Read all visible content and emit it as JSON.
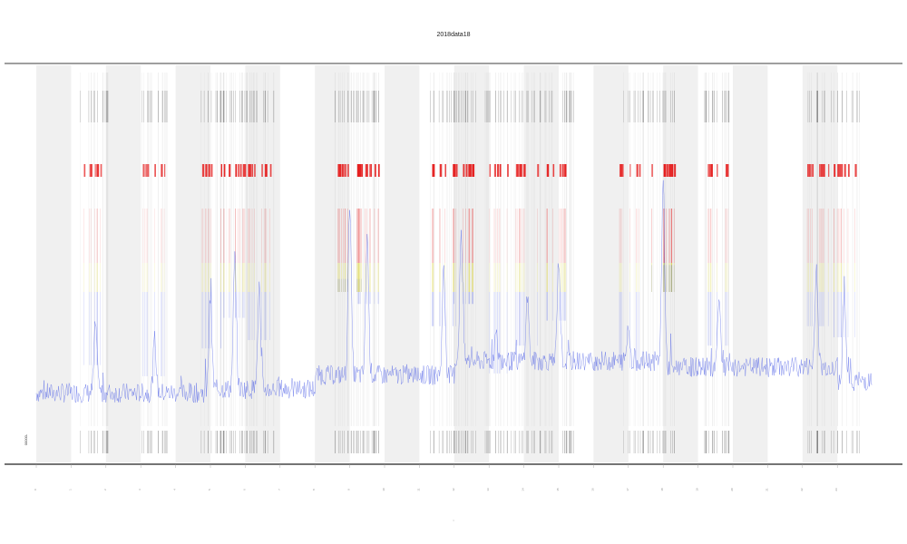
{
  "chart_data": {
    "type": "line",
    "title": "2018data18",
    "xlabel": "t",
    "ylabel": "",
    "legend": {
      "entries": [
        "00000-"
      ],
      "placement": "bottom-left"
    },
    "grid": false,
    "bands": {
      "alternating_shading": true,
      "count": 24,
      "start": 0,
      "end": 24
    },
    "x_tick_labels": [
      "0",
      "1",
      "2",
      "3",
      "4",
      "5",
      "6",
      "7",
      "8",
      "9",
      "10",
      "11",
      "12",
      "13",
      "14",
      "15",
      "16",
      "17",
      "18",
      "19",
      "20",
      "21",
      "22",
      "23"
    ],
    "ylim": [
      0,
      100
    ],
    "baseline_segments": [
      {
        "x_start": 0.0,
        "x_end": 5.0,
        "level": 17.5
      },
      {
        "x_start": 5.0,
        "x_end": 8.0,
        "level": 18.5
      },
      {
        "x_start": 8.0,
        "x_end": 12.0,
        "level": 22.0
      },
      {
        "x_start": 12.0,
        "x_end": 18.0,
        "level": 25.5
      },
      {
        "x_start": 18.0,
        "x_end": 23.0,
        "level": 24.0
      },
      {
        "x_start": 23.0,
        "x_end": 24.0,
        "level": 20.5
      }
    ],
    "peaks": [
      {
        "x": 1.7,
        "y": 35
      },
      {
        "x": 3.4,
        "y": 31
      },
      {
        "x": 5.0,
        "y": 41
      },
      {
        "x": 5.7,
        "y": 52
      },
      {
        "x": 6.4,
        "y": 44
      },
      {
        "x": 9.0,
        "y": 66
      },
      {
        "x": 9.5,
        "y": 57
      },
      {
        "x": 11.7,
        "y": 49
      },
      {
        "x": 12.2,
        "y": 57
      },
      {
        "x": 13.2,
        "y": 32
      },
      {
        "x": 14.1,
        "y": 42
      },
      {
        "x": 15.0,
        "y": 51
      },
      {
        "x": 17.0,
        "y": 34
      },
      {
        "x": 18.0,
        "y": 71
      },
      {
        "x": 19.6,
        "y": 42
      },
      {
        "x": 22.4,
        "y": 49
      },
      {
        "x": 23.2,
        "y": 45
      }
    ],
    "colors": {
      "line": "#4a5ce6",
      "band": "#f0f0f0",
      "high": "#e52020",
      "mid": "#d8d028",
      "marker": "#444444",
      "frame": "#666666"
    }
  }
}
